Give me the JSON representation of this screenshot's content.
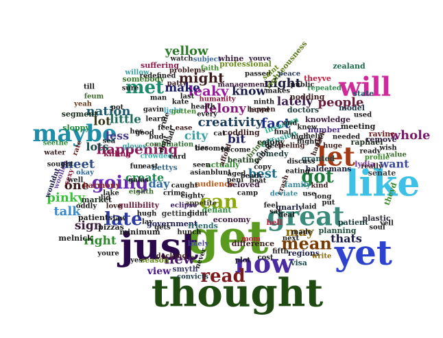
{
  "word_cloud": {
    "words": [
      {
        "text": "get",
        "color": "#5a9a1e"
      },
      {
        "text": "thought",
        "color": "#1f4a12"
      },
      {
        "text": "like",
        "color": "#3fc0e6"
      },
      {
        "text": "just",
        "color": "#2a0a4a"
      },
      {
        "text": "yet",
        "color": "#2d43d0"
      },
      {
        "text": "great",
        "color": "#3a8a7c"
      },
      {
        "text": "will",
        "color": "#d02a9a"
      },
      {
        "text": "now",
        "color": "#4a2aa0"
      },
      {
        "text": "let",
        "color": "#a33a14"
      },
      {
        "text": "maybe",
        "color": "#1f8ca8"
      },
      {
        "text": "can",
        "color": "#8aa80a"
      },
      {
        "text": "going",
        "color": "#6a2ab0"
      },
      {
        "text": "read",
        "color": "#7a1a1a"
      },
      {
        "text": "mean",
        "color": "#7a3a00"
      },
      {
        "text": "late",
        "color": "#2a3aa0"
      },
      {
        "text": "got",
        "color": "#1a7a3a"
      },
      {
        "text": "met",
        "color": "#1a8a6a"
      },
      {
        "text": "new",
        "color": "#4a1a6a"
      },
      {
        "text": "might",
        "color": "#3a1a1a"
      },
      {
        "text": "leaky",
        "color": "#9a1aa0"
      },
      {
        "text": "yellow",
        "color": "#2a7a2a"
      },
      {
        "text": "happening",
        "color": "#8a1a5a"
      },
      {
        "text": "whole",
        "color": "#7a1a6a"
      },
      {
        "text": "people",
        "color": "#6a1a3a"
      },
      {
        "text": "creativity",
        "color": "#1a3a5a"
      },
      {
        "text": "fact",
        "color": "#1a2a8a"
      },
      {
        "text": "pinky",
        "color": "#3ac03a"
      },
      {
        "text": "talk",
        "color": "#3a8ad0"
      },
      {
        "text": "right",
        "color": "#2a8a2a"
      },
      {
        "text": "sign",
        "color": "#3a1a3a"
      },
      {
        "text": "nation",
        "color": "#1a5a6a"
      },
      {
        "text": "night",
        "color": "#1a1a3a"
      },
      {
        "text": "know",
        "color": "#1a1a4a"
      },
      {
        "text": "felony",
        "color": "#8a1a7a"
      },
      {
        "text": "city",
        "color": "#3aa0a0"
      },
      {
        "text": "make",
        "color": "#1a1a6a"
      },
      {
        "text": "little",
        "color": "#1a6a5a"
      },
      {
        "text": "lot",
        "color": "#3a3a1a"
      },
      {
        "text": "lots",
        "color": "#1a4a4a"
      },
      {
        "text": "meet",
        "color": "#2a4a8a"
      },
      {
        "text": "create",
        "color": "#1a8a4a"
      },
      {
        "text": "day",
        "color": "#2a6aa0"
      },
      {
        "text": "one",
        "color": "#3a1a1a"
      },
      {
        "text": "bit",
        "color": "#1a1a5a"
      },
      {
        "text": "best",
        "color": "#1a6a8a"
      },
      {
        "text": "lately",
        "color": "#3a1a4a"
      },
      {
        "text": "may",
        "color": "#8a6a0a"
      },
      {
        "text": "thats",
        "color": "#1a1a4a"
      },
      {
        "text": "want",
        "color": "#3a4aa0"
      },
      {
        "text": "view",
        "color": "#4a1a8a"
      },
      {
        "text": "less",
        "color": "#4a3a8a"
      },
      {
        "text": "hell",
        "color": "#c01a3a"
      },
      {
        "text": "somebody",
        "color": "#3a7a2a"
      },
      {
        "text": "suffering",
        "color": "#8a1a4a"
      },
      {
        "text": "professional",
        "color": "#6a8a1a"
      },
      {
        "text": "righteousness",
        "color": "#5a7a1a"
      },
      {
        "text": "zealand",
        "color": "#1a6a4a"
      },
      {
        "text": "watch",
        "color": "#2a2a2a"
      },
      {
        "text": "subject",
        "color": "#3a6aa0"
      },
      {
        "text": "whine",
        "color": "#3a1a3a"
      },
      {
        "text": "youve",
        "color": "#2a1a3a"
      },
      {
        "text": "passed",
        "color": "#1a1a1a"
      },
      {
        "text": "peace",
        "color": "#2a3a5a"
      },
      {
        "text": "state",
        "color": "#1a5a6a"
      },
      {
        "text": "crowded",
        "color": "#3ab0b0"
      },
      {
        "text": "appetite",
        "color": "#3a3a1a"
      },
      {
        "text": "eclipse",
        "color": "#3a1a6a"
      },
      {
        "text": "plastic",
        "color": "#2a2a3a"
      },
      {
        "text": "patient",
        "color": "#1a3a3a"
      },
      {
        "text": "raphael",
        "color": "#1a2a1a"
      },
      {
        "text": "economy",
        "color": "#3a1a3a"
      },
      {
        "text": "planning",
        "color": "#1a4a3a"
      },
      {
        "text": "difference",
        "color": "#3a1a1a"
      },
      {
        "text": "comedy",
        "color": "#1a3a3a"
      },
      {
        "text": "knowledge",
        "color": "#3a1a3a"
      },
      {
        "text": "government",
        "color": "#1a1a5a"
      },
      {
        "text": "gullibility",
        "color": "#6a1a3a"
      },
      {
        "text": "combination",
        "color": "#2a6a2a"
      },
      {
        "text": "management",
        "color": "#3a1a3a"
      },
      {
        "text": "haldemans",
        "color": "#1a1a3a"
      },
      {
        "text": "harmony",
        "color": "#8a2a2a"
      },
      {
        "text": "audience",
        "color": "#c0581a"
      },
      {
        "text": "invasion",
        "color": "#2ab08a"
      },
      {
        "text": "diffusion",
        "color": "#2a9a8a"
      },
      {
        "text": "beating",
        "color": "#1a3a1a"
      },
      {
        "text": "coddling",
        "color": "#3a1a1a"
      },
      {
        "text": "granted",
        "color": "#1a4a4a"
      },
      {
        "text": "regions",
        "color": "#1a1a4a"
      },
      {
        "text": "melnick",
        "color": "#1a1a1a"
      },
      {
        "text": "convicts",
        "color": "#1a3a4a"
      },
      {
        "text": "minimum",
        "color": "#1a1a1a"
      },
      {
        "text": "bettys",
        "color": "#3a6a8a"
      },
      {
        "text": "friends",
        "color": "#2a6a6a"
      },
      {
        "text": "defiant",
        "color": "#2a8a3a"
      },
      {
        "text": "redefined",
        "color": "#1a1a1a"
      },
      {
        "text": "problems",
        "color": "#3a1a1a"
      },
      {
        "text": "humanity",
        "color": "#8a1a3a"
      },
      {
        "text": "repeated",
        "color": "#2a8a4a"
      },
      {
        "text": "meeting",
        "color": "#1a1a1a"
      },
      {
        "text": "doctors",
        "color": "#1a3a3a"
      },
      {
        "text": "nodding",
        "color": "#3a1a1a"
      },
      {
        "text": "remove",
        "color": "#2a1a3a"
      },
      {
        "text": "senate",
        "color": "#3a3a3a"
      },
      {
        "text": "ravine",
        "color": "#6a1a1a"
      },
      {
        "text": "woollen",
        "color": "#6a4aa0"
      },
      {
        "text": "wouldnt",
        "color": "#1a1a4a"
      },
      {
        "text": "market",
        "color": "#1a2a1a"
      },
      {
        "text": "pizzas",
        "color": "#1a1a1a"
      },
      {
        "text": "patients",
        "color": "#1a1a1a"
      },
      {
        "text": "season",
        "color": "#6a8a1a"
      },
      {
        "text": "smyth",
        "color": "#3a3a6a"
      },
      {
        "text": "killing",
        "color": "#8a1a4a"
      },
      {
        "text": "sloppy",
        "color": "#1a8a3a"
      },
      {
        "text": "segment",
        "color": "#1a2a1a"
      },
      {
        "text": "health",
        "color": "#1a1a1a"
      },
      {
        "text": "colony",
        "color": "#1a1a1a"
      },
      {
        "text": "model",
        "color": "#1a3a4a"
      },
      {
        "text": "crime",
        "color": "#1a1a1a"
      },
      {
        "text": "docking",
        "color": "#3a1a1a"
      },
      {
        "text": "getting",
        "color": "#3a3a3a"
      },
      {
        "text": "eighth",
        "color": "#3a6a2a"
      },
      {
        "text": "eighty",
        "color": "#1a1a1a"
      },
      {
        "text": "likely",
        "color": "#4a4aa0"
      },
      {
        "text": "hunch",
        "color": "#1a1a1a"
      },
      {
        "text": "beloved",
        "color": "#3a1a3a"
      },
      {
        "text": "family",
        "color": "#3a8aa0"
      },
      {
        "text": "gnarly",
        "color": "#1a1a3a"
      },
      {
        "text": "actually",
        "color": "#2a8a2a"
      },
      {
        "text": "number",
        "color": "#4a2a8a"
      },
      {
        "text": "fifth",
        "color": "#1a1a1a"
      },
      {
        "text": "visa",
        "color": "#1a4a4a"
      },
      {
        "text": "lydia",
        "color": "#7a3aa0"
      },
      {
        "text": "theyd",
        "color": "#3a8a2a"
      },
      {
        "text": "theyve",
        "color": "#c01a3a"
      },
      {
        "text": "public",
        "color": "#1a1a1a"
      },
      {
        "text": "makes",
        "color": "#1a1a1a"
      },
      {
        "text": "ninth",
        "color": "#1a1a1a"
      },
      {
        "text": "howd",
        "color": "#1a1a1a"
      },
      {
        "text": "saint",
        "color": "#6a8a1a"
      },
      {
        "text": "kate",
        "color": "#1a1a1a"
      },
      {
        "text": "patty",
        "color": "#3a1a1a"
      },
      {
        "text": "gavin",
        "color": "#1a1a1a"
      },
      {
        "text": "willow",
        "color": "#3aa0a0"
      },
      {
        "text": "sure",
        "color": "#1a1a1a"
      },
      {
        "text": "till",
        "color": "#1a1a1a"
      },
      {
        "text": "feum",
        "color": "#3a6a2a"
      },
      {
        "text": "yeah",
        "color": "#6a3a1a"
      },
      {
        "text": "seethe",
        "color": "#2a8a3a"
      },
      {
        "text": "water",
        "color": "#3a1a1a"
      },
      {
        "text": "sought",
        "color": "#1a1a1a"
      },
      {
        "text": "sexy",
        "color": "#8a1a3a"
      },
      {
        "text": "rate",
        "color": "#6a1a1a"
      },
      {
        "text": "okay",
        "color": "#2a6aa0"
      },
      {
        "text": "well",
        "color": "#1a1a1a"
      },
      {
        "text": "lake",
        "color": "#1a1a1a"
      },
      {
        "text": "oddly",
        "color": "#1a1a1a"
      },
      {
        "text": "love",
        "color": "#3a1a1a"
      },
      {
        "text": "hugh",
        "color": "#1a1a1a"
      },
      {
        "text": "lay",
        "color": "#1a1a1a"
      },
      {
        "text": "youre",
        "color": "#1a1a1a"
      },
      {
        "text": "yes",
        "color": "#1a1a1a"
      },
      {
        "text": "galas",
        "color": "#1a1a1a"
      },
      {
        "text": "fun",
        "color": "#1a1a1a"
      },
      {
        "text": "east",
        "color": "#1a1a1a"
      },
      {
        "text": "learn",
        "color": "#1a1a1a"
      },
      {
        "text": "pot",
        "color": "#1a1a1a"
      },
      {
        "text": "man",
        "color": "#1a1a1a"
      },
      {
        "text": "last",
        "color": "#1a1a1a"
      },
      {
        "text": "light",
        "color": "#3aa0c0"
      },
      {
        "text": "gotten",
        "color": "#3a8a2a"
      },
      {
        "text": "feet",
        "color": "#1a1a1a"
      },
      {
        "text": "ease",
        "color": "#3a1a1a"
      },
      {
        "text": "bud",
        "color": "#1a1a1a"
      },
      {
        "text": "dadi",
        "color": "#1a1a1a"
      },
      {
        "text": "dont",
        "color": "#1a1a1a"
      },
      {
        "text": "faith",
        "color": "#3a8a2a"
      },
      {
        "text": "hes",
        "color": "#1a1a1a"
      },
      {
        "text": "good",
        "color": "#1a1a1a"
      },
      {
        "text": "gets",
        "color": "#1a1a1a"
      },
      {
        "text": "cat",
        "color": "#1a1a1a"
      },
      {
        "text": "ties",
        "color": "#1a1a1a"
      },
      {
        "text": "every",
        "color": "#1a1a1a"
      },
      {
        "text": "afford",
        "color": "#3a1a1a"
      },
      {
        "text": "aged",
        "color": "#1a1a1a"
      },
      {
        "text": "copy",
        "color": "#1a1a1a"
      },
      {
        "text": "happen",
        "color": "#3a1a1a"
      },
      {
        "text": "bring",
        "color": "#3a6a2a"
      },
      {
        "text": "deep",
        "color": "#1a1a1a"
      },
      {
        "text": "feeling",
        "color": "#3a1a1a"
      },
      {
        "text": "high",
        "color": "#1a1a1a"
      },
      {
        "text": "final",
        "color": "#1a1a1a"
      },
      {
        "text": "flight",
        "color": "#1a1a1a"
      },
      {
        "text": "end",
        "color": "#1a1a1a"
      },
      {
        "text": "help",
        "color": "#1a1a1a"
      },
      {
        "text": "hank",
        "color": "#3a1a1a"
      },
      {
        "text": "lack",
        "color": "#3a1a1a"
      },
      {
        "text": "knew",
        "color": "#1a1a1a"
      },
      {
        "text": "kind",
        "color": "#3a1a1a"
      },
      {
        "text": "huge",
        "color": "#3a1a1a"
      },
      {
        "text": "needed",
        "color": "#1a1a1a"
      },
      {
        "text": "used",
        "color": "#1a1a1a"
      },
      {
        "text": "ready",
        "color": "#1a1a1a"
      },
      {
        "text": "wish",
        "color": "#1a1a1a"
      },
      {
        "text": "really",
        "color": "#3a1a1a"
      },
      {
        "text": "profile",
        "color": "#3a8a2a"
      },
      {
        "text": "value",
        "color": "#3a6a2a"
      },
      {
        "text": "soul",
        "color": "#1a1a1a"
      },
      {
        "text": "yell",
        "color": "#1a1a1a"
      },
      {
        "text": "eating",
        "color": "#1a1a1a"
      },
      {
        "text": "crash",
        "color": "#3a1a1a"
      },
      {
        "text": "discuss",
        "color": "#1a1a1a"
      },
      {
        "text": "deviate",
        "color": "#3a8aa0"
      },
      {
        "text": "long",
        "color": "#1a1a1a"
      },
      {
        "text": "put",
        "color": "#1a1a1a"
      },
      {
        "text": "use",
        "color": "#1a1a1a"
      },
      {
        "text": "laid",
        "color": "#1a1a1a"
      },
      {
        "text": "made",
        "color": "#1a1a1a"
      },
      {
        "text": "next",
        "color": "#1a1a1a"
      },
      {
        "text": "write",
        "color": "#8a6a0a"
      },
      {
        "text": "mom",
        "color": "#c01a3a"
      },
      {
        "text": "plot",
        "color": "#1a1a1a"
      },
      {
        "text": "cost",
        "color": "#1a1a1a"
      },
      {
        "text": "deal",
        "color": "#1a1a1a"
      },
      {
        "text": "say",
        "color": "#1a1a1a"
      },
      {
        "text": "feel",
        "color": "#1a1a1a"
      },
      {
        "text": "camp",
        "color": "#1a1a1a"
      },
      {
        "text": "beady",
        "color": "#1a1a1a"
      },
      {
        "text": "beat",
        "color": "#1a1a1a"
      },
      {
        "text": "called",
        "color": "#1a1a1a"
      },
      {
        "text": "become",
        "color": "#1a1a1a"
      },
      {
        "text": "becomes",
        "color": "#1a1a1a"
      },
      {
        "text": "seen",
        "color": "#1a1a1a"
      },
      {
        "text": "blunt",
        "color": "#1a1a1a"
      },
      {
        "text": "peni",
        "color": "#1a1a1a"
      },
      {
        "text": "asian",
        "color": "#1a1a1a"
      },
      {
        "text": "caught",
        "color": "#1a1a1a"
      },
      {
        "text": "didnt",
        "color": "#1a1a1a"
      },
      {
        "text": "never",
        "color": "#1a1a1a"
      },
      {
        "text": "card",
        "color": "#1a1a1a"
      },
      {
        "text": "rule",
        "color": "#1a1a1a"
      },
      {
        "text": "gloves",
        "color": "#3aa0a0"
      },
      {
        "text": "sea",
        "color": "#1a1a1a"
      },
      {
        "text": "lid",
        "color": "#1a1a1a"
      },
      {
        "text": "law",
        "color": "#1a1a1a"
      }
    ]
  }
}
